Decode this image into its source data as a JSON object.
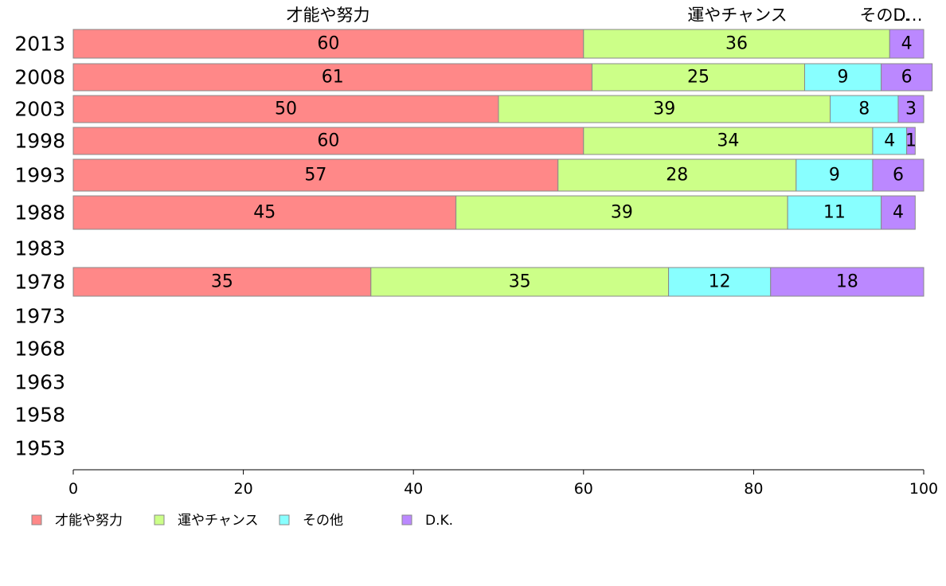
{
  "chart_data": {
    "type": "bar",
    "orientation": "horizontal",
    "stacked": true,
    "categories": [
      "2013",
      "2008",
      "2003",
      "1998",
      "1993",
      "1988",
      "1983",
      "1978",
      "1973",
      "1968",
      "1963",
      "1958",
      "1953"
    ],
    "series": [
      {
        "name": "才能や努力",
        "color": "#ff8888",
        "values": [
          60,
          61,
          50,
          60,
          57,
          45,
          null,
          35,
          null,
          null,
          null,
          null,
          null
        ]
      },
      {
        "name": "運やチャンス",
        "color": "#ccff88",
        "values": [
          36,
          25,
          39,
          34,
          28,
          39,
          null,
          35,
          null,
          null,
          null,
          null,
          null
        ]
      },
      {
        "name": "その他",
        "color": "#88ffff",
        "values": [
          0,
          9,
          8,
          4,
          9,
          11,
          null,
          12,
          null,
          null,
          null,
          null,
          null
        ]
      },
      {
        "name": "D.K.",
        "color": "#bb88ff",
        "values": [
          4,
          6,
          3,
          1,
          6,
          4,
          null,
          18,
          null,
          null,
          null,
          null,
          null
        ]
      }
    ],
    "top_labels": [
      "才能や努力",
      "運やチャンス",
      "その…",
      "D…"
    ],
    "xlim": [
      0,
      100
    ],
    "xticks": [
      0,
      20,
      40,
      60,
      80,
      100
    ],
    "legend_position": "bottom-left",
    "grid": false
  }
}
